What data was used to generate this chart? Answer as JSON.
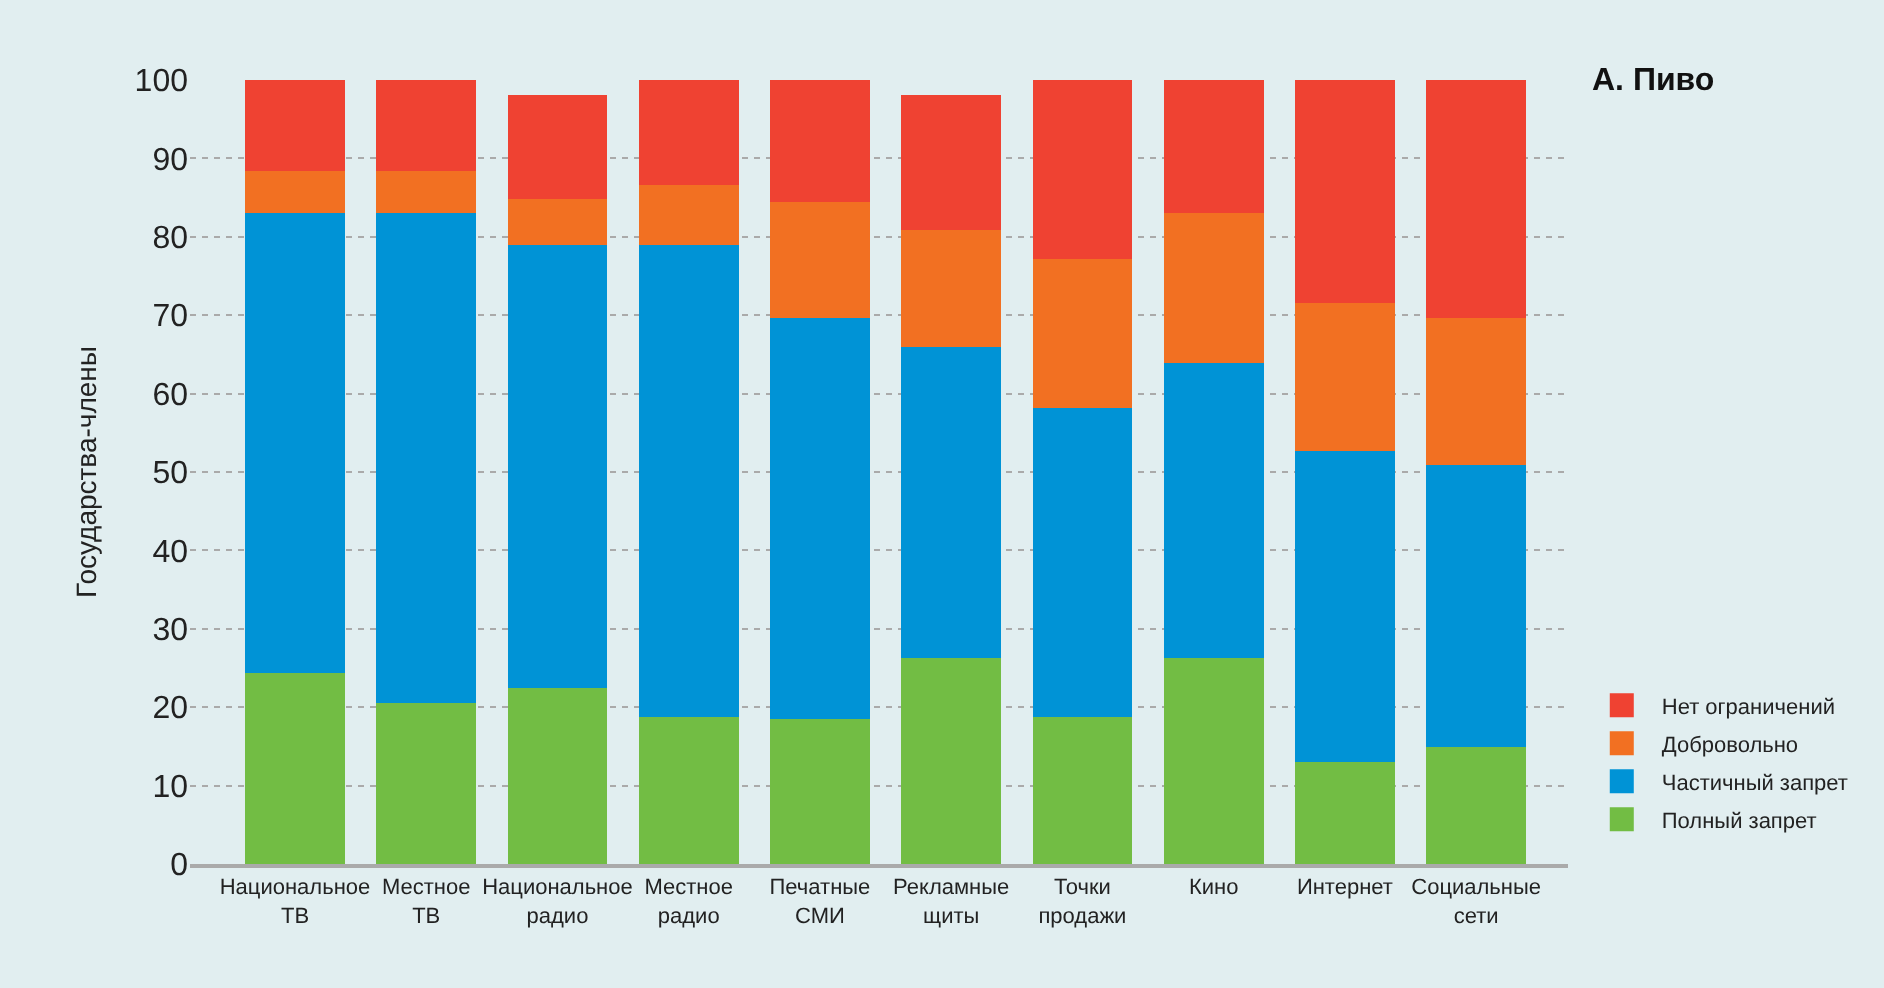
{
  "chart_data": {
    "type": "bar",
    "title": "А. Пиво",
    "ylabel": "Государства-члены",
    "stacked": true,
    "categories": [
      "Национальное ТВ",
      "Местное ТВ",
      "Национальное радио",
      "Местное радио",
      "Печатные СМИ",
      "Рекламные щиты",
      "Точки продажи",
      "Кино",
      "Интернет",
      "Социальные сети"
    ],
    "series": [
      {
        "name": "Полный запрет",
        "color": "#72bd44",
        "values": [
          24.3,
          20.6,
          22.4,
          18.8,
          18.5,
          26.3,
          18.8,
          26.3,
          13.0,
          14.9
        ]
      },
      {
        "name": "Частичный запрет",
        "color": "#0093d6",
        "values": [
          58.7,
          62.4,
          56.6,
          60.2,
          51.2,
          39.7,
          39.4,
          37.6,
          39.7,
          36.0
        ]
      },
      {
        "name": "Добровольно",
        "color": "#f27022",
        "values": [
          5.4,
          5.4,
          5.8,
          7.6,
          14.8,
          14.9,
          19.0,
          19.1,
          18.8,
          18.8
        ]
      },
      {
        "name": "Нет ограничений",
        "color": "#ef4232",
        "values": [
          11.6,
          11.6,
          13.3,
          13.4,
          15.5,
          17.2,
          22.8,
          17.0,
          28.5,
          30.3
        ]
      }
    ],
    "ylim": [
      0,
      100
    ],
    "yticks": [
      0,
      10,
      20,
      30,
      40,
      50,
      60,
      70,
      80,
      90,
      100
    ],
    "grid": "y",
    "legend": "right"
  }
}
